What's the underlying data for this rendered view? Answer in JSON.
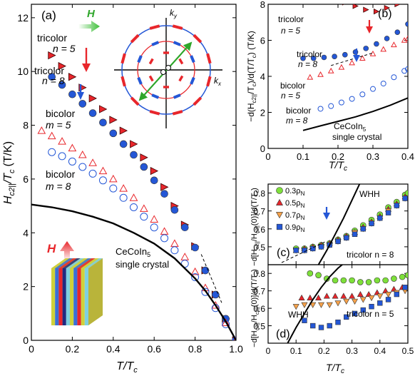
{
  "colors": {
    "red": "#e8262b",
    "red_dark": "#8b1010",
    "blue": "#2457d6",
    "blue_dark": "#0e2a8a",
    "green": "#2fa62b",
    "lime": "#7ee03a",
    "orange": "#f7a24a",
    "black": "#000000"
  },
  "chart_data": [
    {
      "panel": "a",
      "type": "scatter",
      "panel_label": "(a)",
      "xlabel": "T/T_c",
      "ylabel": "H_c2||/T_c (T/K)",
      "xlim": [
        0,
        1.0
      ],
      "ylim": [
        0,
        12.5
      ],
      "xticks": [
        "0",
        "0.2",
        "0.4",
        "0.6",
        "0.8",
        "1.0"
      ],
      "yticks": [
        "0",
        "2",
        "4",
        "6",
        "8",
        "10",
        "12"
      ],
      "series": [
        {
          "name": "tricolor n = 5",
          "marker": "triangle-right-filled",
          "color": "#e8262b",
          "x": [
            0.1,
            0.15,
            0.2,
            0.25,
            0.3,
            0.35,
            0.4,
            0.45,
            0.5,
            0.55,
            0.6,
            0.65,
            0.7,
            0.75,
            0.8,
            0.85,
            0.9,
            0.95,
            1.0
          ],
          "y": [
            10.6,
            10.2,
            9.8,
            9.4,
            9.0,
            8.6,
            8.2,
            7.8,
            7.3,
            6.8,
            6.3,
            5.7,
            5.0,
            4.3,
            3.5,
            2.6,
            1.7,
            0.8,
            0.0
          ]
        },
        {
          "name": "tricolor n = 8",
          "marker": "circle-filled",
          "color": "#2457d6",
          "x": [
            0.1,
            0.15,
            0.2,
            0.25,
            0.3,
            0.35,
            0.4,
            0.45,
            0.5,
            0.55,
            0.6,
            0.65,
            0.7,
            0.75,
            0.8,
            0.85,
            0.9,
            0.95,
            1.0
          ],
          "y": [
            9.8,
            9.5,
            9.15,
            8.8,
            8.45,
            8.1,
            7.7,
            7.3,
            6.9,
            6.45,
            5.95,
            5.45,
            4.85,
            4.2,
            3.45,
            2.6,
            1.7,
            0.8,
            0.0
          ]
        },
        {
          "name": "bicolor n = 5",
          "marker": "triangle-up-open",
          "color": "#e8262b",
          "x": [
            0.05,
            0.1,
            0.15,
            0.2,
            0.25,
            0.3,
            0.35,
            0.4,
            0.45,
            0.5,
            0.55,
            0.6,
            0.65,
            0.7,
            0.75,
            0.8,
            0.85,
            0.9,
            0.95,
            1.0
          ],
          "y": [
            7.8,
            7.6,
            7.4,
            7.15,
            6.9,
            6.6,
            6.3,
            6.0,
            5.65,
            5.3,
            4.9,
            4.5,
            4.05,
            3.6,
            3.1,
            2.55,
            1.95,
            1.3,
            0.65,
            0.0
          ]
        },
        {
          "name": "bicolor m = 8",
          "marker": "circle-open",
          "color": "#2457d6",
          "x": [
            0.1,
            0.15,
            0.2,
            0.25,
            0.3,
            0.35,
            0.4,
            0.45,
            0.5,
            0.55,
            0.6,
            0.65,
            0.7,
            0.75,
            0.8,
            0.85,
            0.9,
            0.95,
            1.0
          ],
          "y": [
            7.0,
            6.85,
            6.65,
            6.45,
            6.2,
            5.95,
            5.65,
            5.3,
            4.95,
            4.6,
            4.2,
            3.8,
            3.35,
            2.85,
            2.35,
            1.8,
            1.2,
            0.6,
            0.0
          ]
        },
        {
          "name": "CeCoIn5 single crystal",
          "marker": "line",
          "color": "#000000",
          "x": [
            0.0,
            0.1,
            0.2,
            0.3,
            0.4,
            0.5,
            0.6,
            0.7,
            0.8,
            0.85,
            0.9,
            0.95,
            1.0
          ],
          "y": [
            5.05,
            4.95,
            4.8,
            4.6,
            4.35,
            4.0,
            3.6,
            3.05,
            2.3,
            1.85,
            1.3,
            0.7,
            0.0
          ]
        }
      ],
      "annotations": [
        {
          "text": "tricolor"
        },
        {
          "text": "n = 5"
        },
        {
          "text": "tricolor"
        },
        {
          "text": "n = 8"
        },
        {
          "text": "bicolor"
        },
        {
          "text": "m = 5"
        },
        {
          "text": "bicolor"
        },
        {
          "text": "m = 8"
        },
        {
          "text": "CeCoIn5"
        },
        {
          "text": "single crystal"
        },
        {
          "text": "H"
        },
        {
          "text": "H"
        },
        {
          "text": "k_y"
        },
        {
          "text": "k_x"
        }
      ]
    },
    {
      "panel": "b",
      "type": "scatter",
      "panel_label": "(b)",
      "xlabel": "T/T_c",
      "ylabel": "-d(H_c2||/T_c)/d(T/T_c) (T/K)",
      "xlim": [
        0,
        0.4
      ],
      "ylim": [
        0,
        8
      ],
      "xticks": [
        "0",
        "0.1",
        "0.2",
        "0.3",
        "0.4"
      ],
      "yticks": [
        "0",
        "2",
        "4",
        "6",
        "8"
      ],
      "series": [
        {
          "name": "tricolor n = 5",
          "marker": "triangle-right-filled",
          "color": "#e8262b",
          "x": [
            0.1,
            0.13,
            0.16,
            0.19,
            0.22,
            0.25,
            0.28,
            0.31,
            0.34,
            0.37,
            0.4
          ],
          "y": [
            8.3,
            8.3,
            8.25,
            8.2,
            8.1,
            7.9,
            7.7,
            7.6,
            7.8,
            8.0,
            8.2
          ]
        },
        {
          "name": "tricolor n = 8",
          "marker": "circle-filled",
          "color": "#2457d6",
          "x": [
            0.1,
            0.13,
            0.16,
            0.19,
            0.22,
            0.25,
            0.28,
            0.31,
            0.34,
            0.37,
            0.4
          ],
          "y": [
            5.0,
            5.0,
            5.05,
            5.1,
            5.2,
            5.35,
            5.55,
            5.8,
            6.1,
            6.45,
            6.9
          ]
        },
        {
          "name": "bicolor n = 5",
          "marker": "triangle-up-open",
          "color": "#e8262b",
          "x": [
            0.12,
            0.15,
            0.18,
            0.21,
            0.24,
            0.27,
            0.3,
            0.33,
            0.36,
            0.39,
            0.4
          ],
          "y": [
            3.95,
            4.1,
            4.3,
            4.5,
            4.75,
            5.0,
            5.25,
            5.5,
            5.75,
            6.0,
            6.1
          ]
        },
        {
          "name": "bicolor m = 8",
          "marker": "circle-open",
          "color": "#2457d6",
          "x": [
            0.15,
            0.18,
            0.21,
            0.24,
            0.27,
            0.3,
            0.33,
            0.36,
            0.39,
            0.4
          ],
          "y": [
            2.2,
            2.35,
            2.55,
            2.75,
            3.0,
            3.3,
            3.6,
            3.95,
            4.3,
            4.4
          ]
        },
        {
          "name": "CeCoIn5 single crystal",
          "marker": "line",
          "color": "#000000",
          "x": [
            0.1,
            0.15,
            0.2,
            0.25,
            0.3,
            0.35,
            0.4
          ],
          "y": [
            1.0,
            1.25,
            1.5,
            1.75,
            2.05,
            2.4,
            2.8
          ]
        }
      ],
      "annotations": [
        {
          "text": "tricolor"
        },
        {
          "text": "n = 5"
        },
        {
          "text": "tricolor"
        },
        {
          "text": "n = 8"
        },
        {
          "text": "bicolor"
        },
        {
          "text": "n = 5"
        },
        {
          "text": "bicolor"
        },
        {
          "text": "m = 8"
        },
        {
          "text": "CeCoIn5"
        },
        {
          "text": "single crystal"
        }
      ]
    },
    {
      "panel": "c",
      "type": "scatter",
      "panel_label": "(c)",
      "xlabel": "",
      "ylabel": "-d[H_c2||/H_c2||(0)]/d(T/T_c)",
      "xlim": [
        0,
        0.5
      ],
      "ylim": [
        0.4,
        0.85
      ],
      "yticks": [
        "0.5",
        "0.6",
        "0.7",
        "0.8"
      ],
      "title_text": "tricolor n = 8",
      "legend": [
        "0.3ρ_N",
        "0.5ρ_N",
        "0.7ρ_N",
        "0.9ρ_N"
      ],
      "series": [
        {
          "name": "0.3ρN",
          "marker": "circle-filled",
          "color": "#7ee03a",
          "x": [
            0.1,
            0.13,
            0.16,
            0.19,
            0.22,
            0.25,
            0.28,
            0.31,
            0.34,
            0.37,
            0.4,
            0.43,
            0.46,
            0.49,
            0.5
          ],
          "y": [
            0.49,
            0.49,
            0.5,
            0.51,
            0.52,
            0.54,
            0.56,
            0.59,
            0.62,
            0.65,
            0.68,
            0.72,
            0.75,
            0.79,
            0.8
          ]
        },
        {
          "name": "0.5ρN",
          "marker": "triangle-up-filled",
          "color": "#e8262b",
          "x": [
            0.1,
            0.13,
            0.16,
            0.19,
            0.22,
            0.25,
            0.28,
            0.31,
            0.34,
            0.37,
            0.4,
            0.43,
            0.46,
            0.49
          ],
          "y": [
            0.48,
            0.49,
            0.5,
            0.51,
            0.52,
            0.54,
            0.56,
            0.58,
            0.61,
            0.64,
            0.67,
            0.71,
            0.74,
            0.78
          ]
        },
        {
          "name": "0.7ρN",
          "marker": "triangle-down-filled",
          "color": "#f7a24a",
          "x": [
            0.1,
            0.13,
            0.16,
            0.19,
            0.22,
            0.25,
            0.28,
            0.31,
            0.34,
            0.37,
            0.4,
            0.43,
            0.46,
            0.49
          ],
          "y": [
            0.48,
            0.48,
            0.49,
            0.5,
            0.51,
            0.53,
            0.55,
            0.58,
            0.6,
            0.63,
            0.66,
            0.7,
            0.73,
            0.77
          ]
        },
        {
          "name": "0.9ρN",
          "marker": "square-filled",
          "color": "#2457d6",
          "x": [
            0.1,
            0.13,
            0.16,
            0.19,
            0.22,
            0.25,
            0.28,
            0.31,
            0.34,
            0.37,
            0.4,
            0.43,
            0.46,
            0.49
          ],
          "y": [
            0.48,
            0.48,
            0.49,
            0.5,
            0.51,
            0.53,
            0.55,
            0.57,
            0.6,
            0.63,
            0.66,
            0.69,
            0.73,
            0.77
          ]
        },
        {
          "name": "WHH",
          "marker": "line",
          "color": "#000000",
          "x": [
            0.18,
            0.21,
            0.24,
            0.27,
            0.3,
            0.33
          ],
          "y": [
            0.4,
            0.48,
            0.57,
            0.66,
            0.76,
            0.86
          ]
        }
      ],
      "annotations": [
        {
          "text": "WHH"
        },
        {
          "text": "tricolor n = 8"
        }
      ]
    },
    {
      "panel": "d",
      "type": "scatter",
      "panel_label": "(d)",
      "xlabel": "T/T_c",
      "ylabel": "-d[H_c2||/H_c2||(0)]/d(T/T_c)",
      "xlim": [
        0,
        0.5
      ],
      "ylim": [
        0.4,
        0.85
      ],
      "xticks": [
        "0",
        "0.1",
        "0.2",
        "0.3",
        "0.4",
        "0.5"
      ],
      "yticks": [
        "0.5",
        "0.6",
        "0.7",
        "0.8"
      ],
      "series": [
        {
          "name": "0.3ρN",
          "marker": "circle-filled",
          "color": "#7ee03a",
          "x": [
            0.15,
            0.18,
            0.21,
            0.24,
            0.27,
            0.3,
            0.33,
            0.36,
            0.39,
            0.42,
            0.45,
            0.48,
            0.5
          ],
          "y": [
            0.8,
            0.79,
            0.77,
            0.76,
            0.76,
            0.76,
            0.75,
            0.75,
            0.76,
            0.76,
            0.77,
            0.78,
            0.79
          ]
        },
        {
          "name": "0.5ρN",
          "marker": "triangle-up-filled",
          "color": "#e8262b",
          "x": [
            0.12,
            0.15,
            0.18,
            0.21,
            0.24,
            0.27,
            0.3,
            0.33,
            0.36,
            0.39,
            0.42,
            0.45,
            0.48
          ],
          "y": [
            0.66,
            0.66,
            0.66,
            0.67,
            0.67,
            0.67,
            0.67,
            0.68,
            0.68,
            0.69,
            0.7,
            0.71,
            0.72
          ]
        },
        {
          "name": "0.7ρN",
          "marker": "triangle-down-filled",
          "color": "#f7a24a",
          "x": [
            0.1,
            0.13,
            0.16,
            0.19,
            0.22,
            0.25,
            0.28,
            0.31,
            0.34,
            0.37,
            0.4,
            0.43,
            0.46,
            0.49
          ],
          "y": [
            0.61,
            0.62,
            0.62,
            0.62,
            0.62,
            0.63,
            0.64,
            0.64,
            0.65,
            0.66,
            0.67,
            0.68,
            0.69,
            0.7
          ]
        },
        {
          "name": "0.9ρN",
          "marker": "square-filled",
          "color": "#2457d6",
          "x": [
            0.13,
            0.16,
            0.19,
            0.22,
            0.25,
            0.28,
            0.31,
            0.34,
            0.37,
            0.4,
            0.43,
            0.46,
            0.49
          ],
          "y": [
            0.53,
            0.5,
            0.49,
            0.5,
            0.52,
            0.55,
            0.57,
            0.59,
            0.61,
            0.63,
            0.65,
            0.68,
            0.72
          ]
        },
        {
          "name": "WHH",
          "marker": "line",
          "color": "#000000",
          "x": [
            0.07,
            0.1,
            0.13,
            0.16,
            0.19,
            0.22,
            0.25,
            0.28
          ],
          "y": [
            0.4,
            0.49,
            0.57,
            0.65,
            0.72,
            0.78,
            0.83,
            0.87
          ]
        }
      ],
      "annotations": [
        {
          "text": "WHH"
        },
        {
          "text": "tricolor n = 5"
        }
      ]
    }
  ],
  "labels": {
    "a_panel": "(a)",
    "a_xlabel_T": "T",
    "a_xlabel_Tc": "/T",
    "a_xlabel_c": "c",
    "a_ylabel": "H",
    "a_ylabel_sub": "c2||",
    "a_ylabel_rest": "/T",
    "a_ylabel_c": "c",
    "a_ylabel_unit": "(T/K)",
    "a_tri5_1": "tricolor",
    "a_tri5_2": "n = 5",
    "a_tri8_1": "tricolor",
    "a_tri8_2": "n = 8",
    "a_bi5_1": "bicolor",
    "a_bi5_2": "m = 5",
    "a_bi8_1": "bicolor",
    "a_bi8_2": "m = 8",
    "a_ce_1": "CeCoIn",
    "a_ce_1_sub": "5",
    "a_ce_2": "single crystal",
    "inset_H": "H",
    "inset_ky": "k",
    "inset_ky_sub": "y",
    "inset_kx": "k",
    "inset_kx_sub": "x",
    "sample_H": "H",
    "b_panel": "(b)",
    "b_tri5_1": "tricolor",
    "b_tri5_2": "n = 5",
    "b_tri8_1": "tricolor",
    "b_tri8_2": "n = 8",
    "b_bi5_1": "bicolor",
    "b_bi5_2": "n = 5",
    "b_bi8_1": "bicolor",
    "b_bi8_2": "m = 8",
    "b_ce_1": "CeCoIn",
    "b_ce_1_sub": "5",
    "b_ce_2": "single crystal",
    "b_xlabel": "T/T",
    "b_xlabel_c": "c",
    "b_ylabel": "−d(H",
    "b_ylabel_sub": "c2||",
    "b_ylabel_mid": "/T",
    "b_ylabel_c": "c",
    "b_ylabel_mid2": ")/d(T/T",
    "b_ylabel_c2": "c",
    "b_ylabel_end": ")  (T/K)",
    "c_panel": "(c)",
    "c_whh": "WHH",
    "c_title": "tricolor n = 8",
    "c_leg1": "0.3ρ",
    "c_leg2": "0.5ρ",
    "c_leg3": "0.7ρ",
    "c_leg4": "0.9ρ",
    "c_leg_sub": "N",
    "d_panel": "(d)",
    "d_whh": "WHH",
    "d_title": "tricolor n = 5",
    "d_xlabel": "T/T",
    "d_xlabel_c": "c",
    "cd_ylabel": "−d[H",
    "cd_ylabel_sub": "c2||",
    "cd_ylabel_mid": "/H",
    "cd_ylabel_sub2": "c2||",
    "cd_ylabel_end": "(0)]/d(T/T",
    "cd_ylabel_c": "c",
    "cd_ylabel_close": ")"
  }
}
